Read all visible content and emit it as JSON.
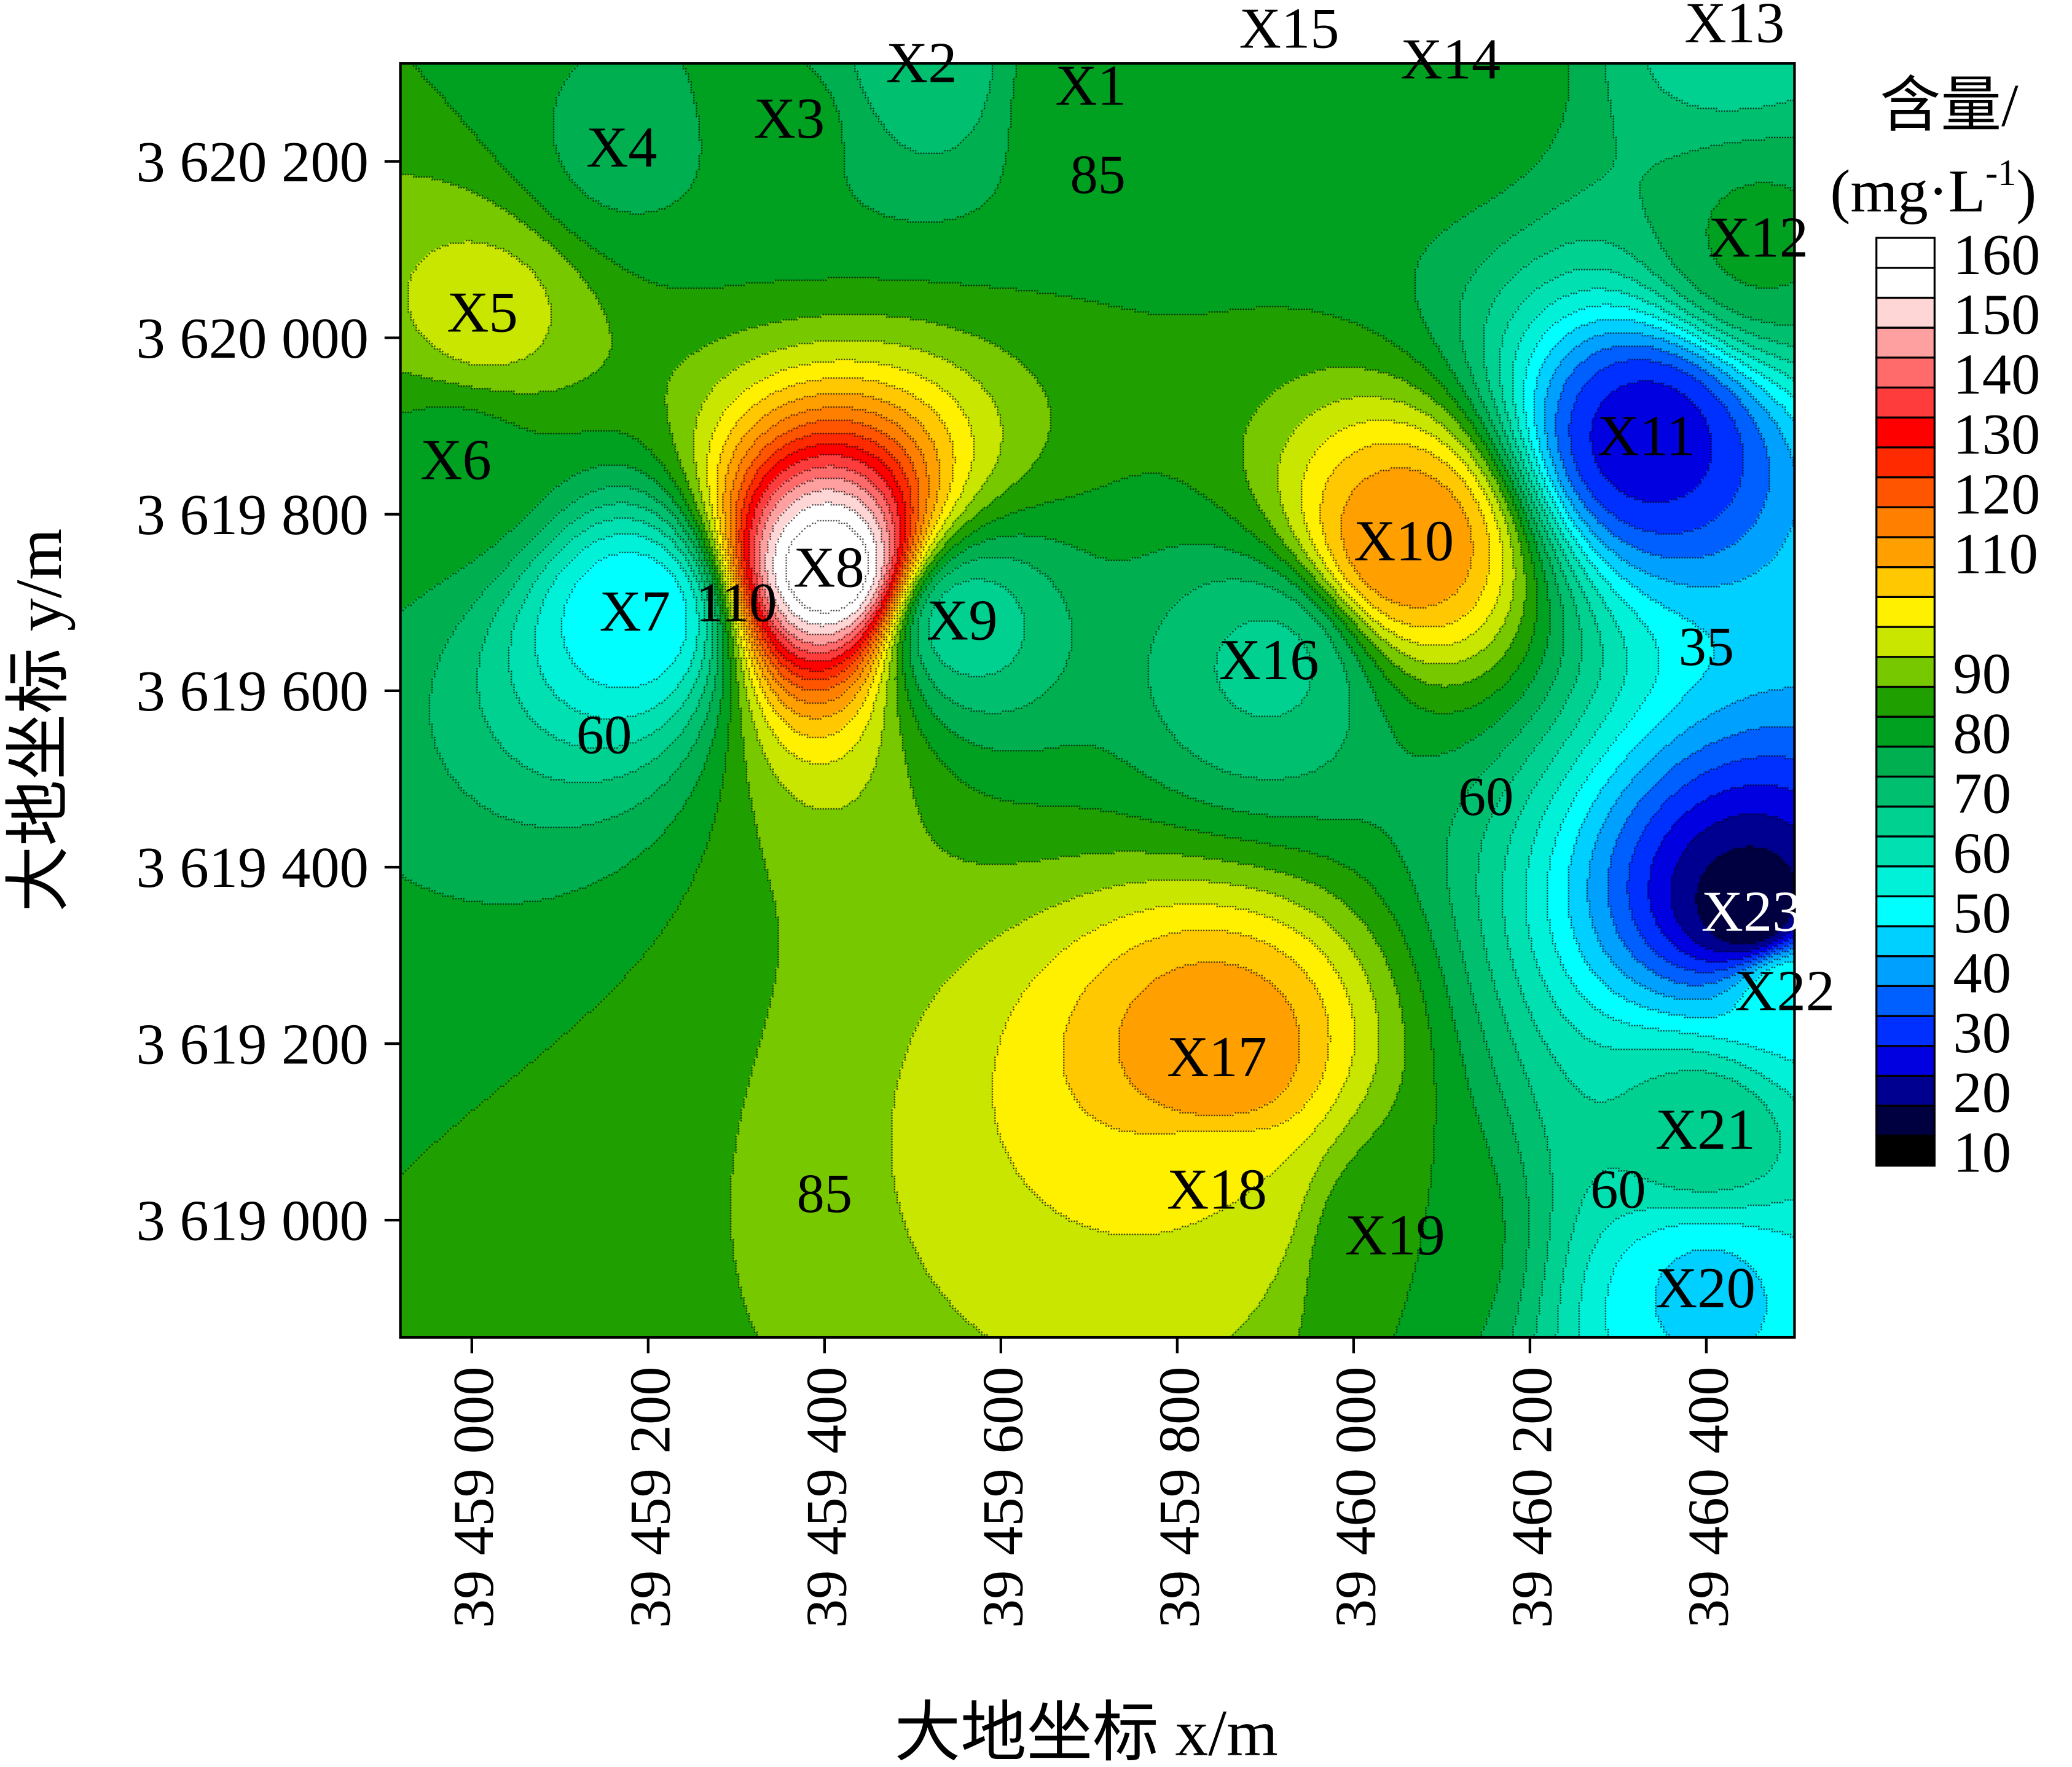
{
  "chart_data": {
    "type": "heatmap",
    "subtype": "filled-contour",
    "xlabel": "大地坐标 x/m",
    "ylabel": "大地坐标 y/m",
    "xlim": [
      39458919,
      39460500
    ],
    "ylim": [
      3618867,
      3620311
    ],
    "x_ticks": [
      39459000,
      39459200,
      39459400,
      39459600,
      39459800,
      39460000,
      39460200,
      39460400
    ],
    "x_tick_labels": [
      "39 459 000",
      "39 459 200",
      "39 459 400",
      "39 459 600",
      "39 459 800",
      "39 460 000",
      "39 460 200",
      "39 460 400"
    ],
    "y_ticks": [
      3620200,
      3620000,
      3619800,
      3619600,
      3619400,
      3619200,
      3619000
    ],
    "y_tick_labels": [
      "3 620 200",
      "3 620 000",
      "3 619 800",
      "3 619 600",
      "3 619 400",
      "3 619 200",
      "3 619 000"
    ],
    "colorbar": {
      "title_line1": "含量/",
      "title_line2": "(mg·L",
      "title_sup": "-1",
      "title_end": ")",
      "placement": "right",
      "tick_labels": [
        "160",
        "150",
        "140",
        "130",
        "120",
        "110",
        "90",
        "80",
        "70",
        "60",
        "50",
        "40",
        "30",
        "20",
        "10"
      ],
      "levels": [
        10,
        15,
        20,
        25,
        30,
        35,
        40,
        45,
        50,
        55,
        60,
        65,
        70,
        75,
        80,
        85,
        90,
        95,
        100,
        105,
        110,
        115,
        120,
        125,
        130,
        135,
        140,
        145,
        150,
        155,
        160
      ],
      "colors": [
        "#000000",
        "#000040",
        "#000090",
        "#0000e0",
        "#0030ff",
        "#0060ff",
        "#00a0ff",
        "#00d0ff",
        "#00ffff",
        "#00f0d8",
        "#00e0b0",
        "#00d090",
        "#00c070",
        "#00b050",
        "#00a020",
        "#20a000",
        "#78c800",
        "#c8e600",
        "#fff000",
        "#ffc800",
        "#ffa000",
        "#ff7f00",
        "#ff5500",
        "#ff2a00",
        "#ff0000",
        "#ff3c3c",
        "#ff6a6a",
        "#ffa0a0",
        "#ffd6d6",
        "#ffffff",
        "#ffffff"
      ]
    },
    "contour_labels": [
      {
        "text": "85",
        "x": 39459710,
        "y": 3620185
      },
      {
        "text": "110",
        "x": 39459300,
        "y": 3619700
      },
      {
        "text": "60",
        "x": 39459150,
        "y": 3619550
      },
      {
        "text": "35",
        "x": 39460400,
        "y": 3619650
      },
      {
        "text": "60",
        "x": 39460150,
        "y": 3619480
      },
      {
        "text": "60",
        "x": 39460300,
        "y": 3619035
      },
      {
        "text": "85",
        "x": 39459400,
        "y": 3619030
      }
    ],
    "stations": [
      {
        "name": "X1",
        "x": 39459702,
        "y": 3620285,
        "value": 80
      },
      {
        "name": "X2",
        "x": 39459510,
        "y": 3620311,
        "value": 66
      },
      {
        "name": "X3",
        "x": 39459360,
        "y": 3620248,
        "value": 76
      },
      {
        "name": "X4",
        "x": 39459170,
        "y": 3620215,
        "value": 74
      },
      {
        "name": "X5",
        "x": 39459012,
        "y": 3620028,
        "value": 92
      },
      {
        "name": "X6",
        "x": 39458982,
        "y": 3619861,
        "value": 78
      },
      {
        "name": "X7",
        "x": 39459185,
        "y": 3619689,
        "value": 45
      },
      {
        "name": "X8",
        "x": 39459405,
        "y": 3619739,
        "value": 160
      },
      {
        "name": "X9",
        "x": 39459556,
        "y": 3619679,
        "value": 62
      },
      {
        "name": "X10",
        "x": 39460057,
        "y": 3619769,
        "value": 110
      },
      {
        "name": "X11",
        "x": 39460332,
        "y": 3619888,
        "value": 22
      },
      {
        "name": "X12",
        "x": 39460459,
        "y": 3620113,
        "value": 76
      },
      {
        "name": "X13",
        "x": 39460432,
        "y": 3620356,
        "value": 62
      },
      {
        "name": "X14",
        "x": 39460110,
        "y": 3620315,
        "value": 80
      },
      {
        "name": "X15",
        "x": 39459927,
        "y": 3620350,
        "value": 80
      },
      {
        "name": "X16",
        "x": 39459904,
        "y": 3619634,
        "value": 64
      },
      {
        "name": "X17",
        "x": 39459845,
        "y": 3619184,
        "value": 110
      },
      {
        "name": "X18",
        "x": 39459845,
        "y": 3619034,
        "value": 95
      },
      {
        "name": "X19",
        "x": 39460047,
        "y": 3618982,
        "value": 80
      },
      {
        "name": "X20",
        "x": 39460399,
        "y": 3618922,
        "value": 44
      },
      {
        "name": "X21",
        "x": 39460399,
        "y": 3619102,
        "value": 64
      },
      {
        "name": "X22",
        "x": 39460489,
        "y": 3619259,
        "value": 50
      },
      {
        "name": "X23",
        "x": 39460451,
        "y": 3619349,
        "value": 10
      }
    ]
  }
}
